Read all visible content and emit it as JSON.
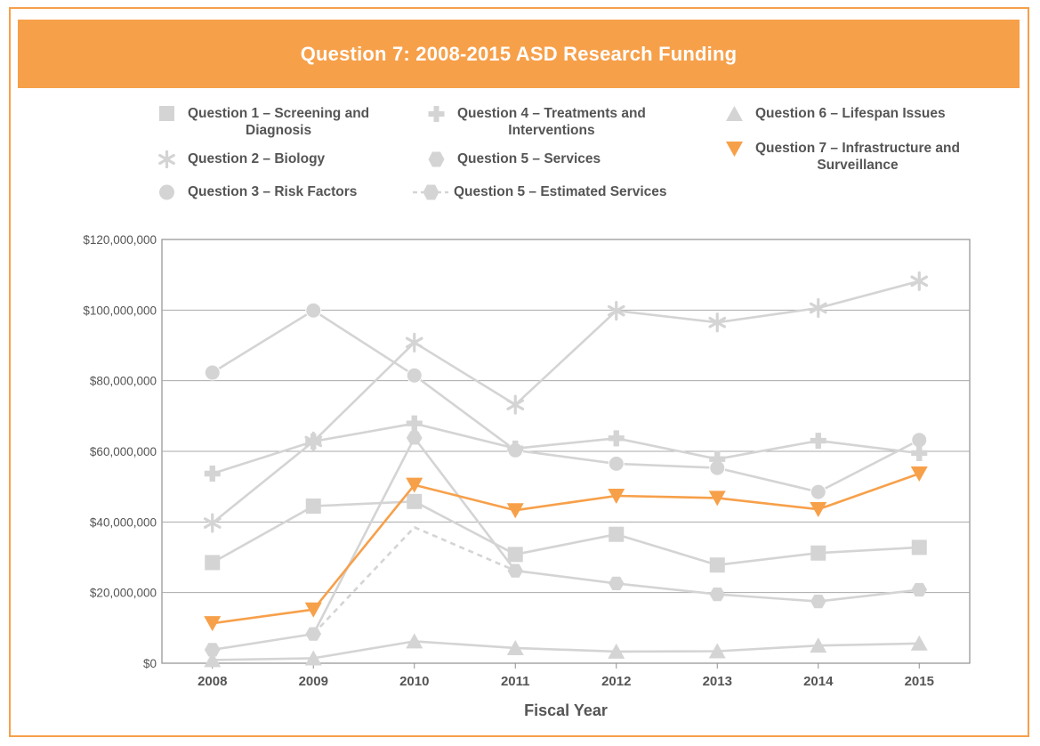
{
  "colors": {
    "accent": "#f7a04a",
    "grey_series": "#d4d4d4",
    "text": "#555555",
    "grid": "#a9a9a9",
    "white": "#ffffff"
  },
  "chart_data": {
    "type": "line",
    "title": "Question 7: 2008-2015 ASD Research Funding",
    "xlabel": "Fiscal Year",
    "ylabel": "",
    "ylim": [
      0,
      120000000
    ],
    "yticks": [
      0,
      20000000,
      40000000,
      60000000,
      80000000,
      100000000,
      120000000
    ],
    "ytick_labels": [
      "$0",
      "$20,000,000",
      "$40,000,000",
      "$60,000,000",
      "$80,000,000",
      "$100,000,000",
      "$120,000,000"
    ],
    "x": [
      "2008",
      "2009",
      "2010",
      "2011",
      "2012",
      "2013",
      "2014",
      "2015"
    ],
    "grid": true,
    "legend_position": "top",
    "series": [
      {
        "key": "q1",
        "name_lines": [
          "Question 1 – Screening and",
          "Diagnosis"
        ],
        "marker": "square",
        "color": "#d4d4d4",
        "dashed": false,
        "values": [
          28500000,
          44500000,
          45800000,
          30800000,
          36500000,
          27800000,
          31200000,
          32800000
        ]
      },
      {
        "key": "q2",
        "name_lines": [
          "Question 2 – Biology"
        ],
        "marker": "asterisk",
        "color": "#d4d4d4",
        "dashed": false,
        "values": [
          39700000,
          62800000,
          90800000,
          73200000,
          99800000,
          96500000,
          100600000,
          108200000
        ]
      },
      {
        "key": "q3",
        "name_lines": [
          "Question 3 – Risk Factors"
        ],
        "marker": "circle",
        "color": "#d4d4d4",
        "dashed": false,
        "values": [
          82300000,
          99900000,
          81500000,
          60300000,
          56500000,
          55300000,
          48500000,
          63200000
        ]
      },
      {
        "key": "q4",
        "name_lines": [
          "Question 4 – Treatments and",
          "Interventions"
        ],
        "marker": "plus",
        "color": "#d4d4d4",
        "dashed": false,
        "values": [
          53700000,
          62800000,
          67900000,
          60800000,
          63700000,
          57800000,
          63000000,
          59500000
        ]
      },
      {
        "key": "q5",
        "name_lines": [
          "Question 5 – Services"
        ],
        "marker": "hexagon",
        "color": "#d4d4d4",
        "dashed": false,
        "values": [
          3800000,
          8300000,
          63800000,
          26200000,
          22600000,
          19500000,
          17500000,
          20800000
        ]
      },
      {
        "key": "q5e",
        "name_lines": [
          "Question 5 – Estimated Services"
        ],
        "marker": "hexagon",
        "color": "#d4d4d4",
        "dashed": true,
        "values": [
          null,
          8300000,
          38500000,
          26200000,
          null,
          null,
          null,
          null
        ]
      },
      {
        "key": "q6",
        "name_lines": [
          "Question 6 – Lifespan Issues"
        ],
        "marker": "triangle",
        "color": "#d4d4d4",
        "dashed": false,
        "values": [
          900000,
          1400000,
          6200000,
          4300000,
          3300000,
          3400000,
          5000000,
          5600000
        ]
      },
      {
        "key": "q7",
        "name_lines": [
          "Question 7 – Infrastructure and",
          "Surveillance"
        ],
        "marker": "triangle-down",
        "color": "#f7a04a",
        "dashed": false,
        "values": [
          11300000,
          15200000,
          50500000,
          43300000,
          47400000,
          46800000,
          43600000,
          53700000
        ]
      }
    ]
  }
}
